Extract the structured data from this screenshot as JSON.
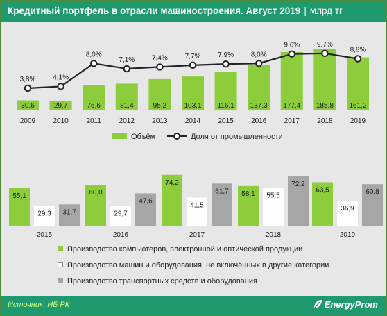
{
  "header": {
    "title": "Кредитный портфель в отрасли машиностроения. Август 2019",
    "separator": "|",
    "unit": "млрд тг"
  },
  "footer": {
    "source": "Источник: НБ РК",
    "brand": "EnergyProm"
  },
  "colors": {
    "green": "#8dcd3c",
    "white": "#ffffff",
    "gray": "#a6a6a6",
    "line": "#222222",
    "header_bg": "#1f9a6f"
  },
  "chart_data": [
    {
      "type": "bar",
      "categories": [
        "2009",
        "2010",
        "2011",
        "2012",
        "2013",
        "2014",
        "2015",
        "2016",
        "2017",
        "2018",
        "2019"
      ],
      "series": [
        {
          "name": "Объём",
          "values": [
            30.6,
            29.7,
            76.6,
            81.4,
            95.2,
            103.1,
            116.1,
            137.3,
            177.4,
            185.8,
            161.2
          ],
          "labels": [
            "30,6",
            "29,7",
            "76,6",
            "81,4",
            "95,2",
            "103,1",
            "116,1",
            "137,3",
            "177,4",
            "185,8",
            "161,2"
          ]
        },
        {
          "name": "Доля от промышленности",
          "type": "line",
          "values": [
            3.8,
            4.1,
            8.0,
            7.1,
            7.4,
            7.7,
            7.9,
            8.0,
            9.6,
            9.7,
            8.8
          ],
          "labels": [
            "3,8%",
            "4,1%",
            "8,0%",
            "7,1%",
            "7,4%",
            "7,7%",
            "7,9%",
            "8,0%",
            "9,6%",
            "9,7%",
            "8,8%"
          ]
        }
      ],
      "legend_position": "bottom"
    },
    {
      "type": "bar",
      "categories": [
        "2015",
        "2016",
        "2017",
        "2018",
        "2019"
      ],
      "series": [
        {
          "name": "Производство компьютеров, электронной и оптической продукции",
          "values": [
            55.1,
            60.0,
            74.2,
            58.1,
            63.5
          ],
          "labels": [
            "55,1",
            "60,0",
            "74,2",
            "58,1",
            "63,5"
          ]
        },
        {
          "name": "Производство машин и оборудования, не включённых в другие категории",
          "values": [
            29.3,
            29.7,
            41.5,
            55.5,
            36.9
          ],
          "labels": [
            "29,3",
            "29,7",
            "41,5",
            "55,5",
            "36,9"
          ]
        },
        {
          "name": "Производство транспортных средств и оборудования",
          "values": [
            31.7,
            47.6,
            61.7,
            72.2,
            60.8
          ],
          "labels": [
            "31,7",
            "47,6",
            "61,7",
            "72,2",
            "60,8"
          ]
        }
      ],
      "legend_position": "bottom"
    }
  ]
}
